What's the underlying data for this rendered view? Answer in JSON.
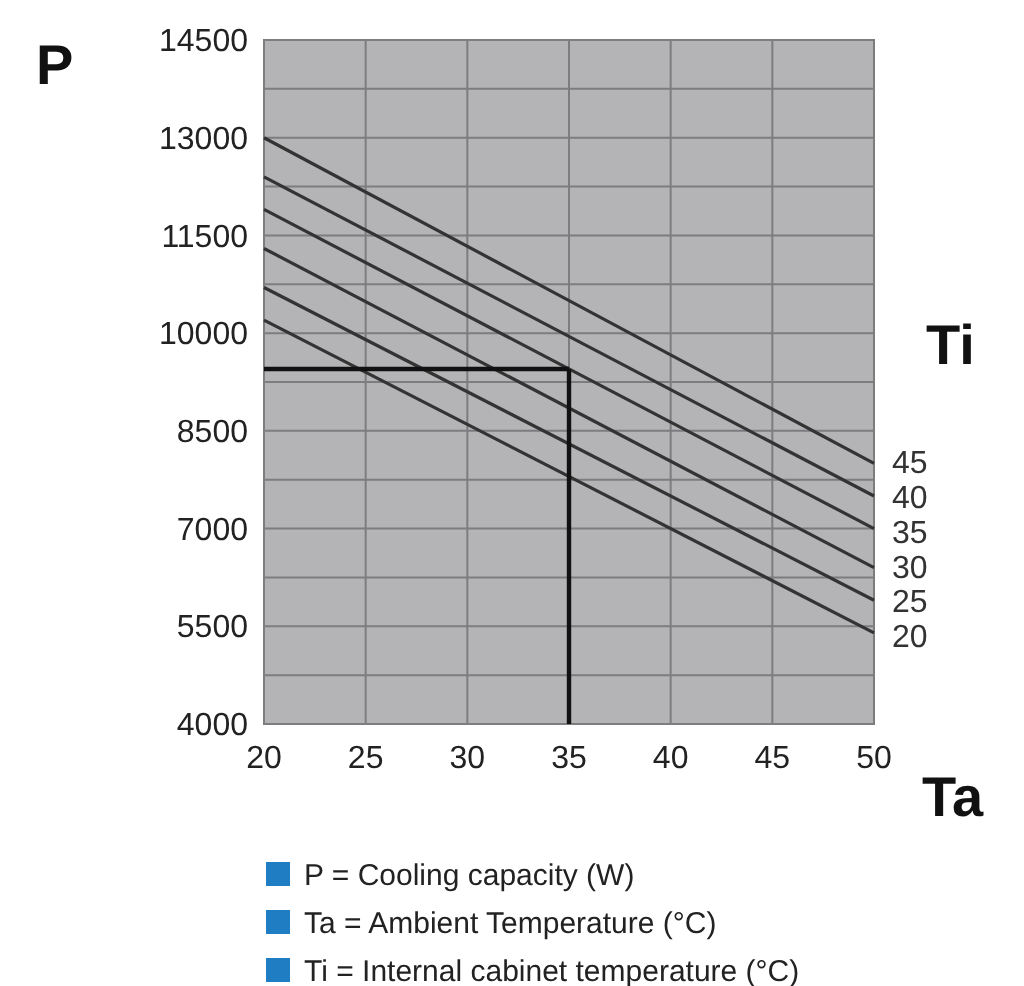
{
  "chart_data": {
    "type": "line",
    "xlabel": "Ta",
    "ylabel": "P",
    "legend_title": "Ti",
    "legend": "right",
    "grid": true,
    "marker": "none",
    "line_style": "solid",
    "x": [
      20,
      50
    ],
    "xlim": [
      20,
      50
    ],
    "xticks": [
      20,
      25,
      30,
      35,
      40,
      45,
      50
    ],
    "ylim": [
      4000,
      14500
    ],
    "yticks": [
      4000,
      {
        "value": 4750,
        "label": null
      },
      5500,
      {
        "value": 6250,
        "label": null
      },
      7000,
      {
        "value": 7750,
        "label": null
      },
      8500,
      {
        "value": 9250,
        "label": null
      },
      10000,
      {
        "value": 10750,
        "label": null
      },
      11500,
      {
        "value": 12250,
        "label": null
      },
      13000,
      {
        "value": 13750,
        "label": null
      },
      14500
    ],
    "series": [
      {
        "name": "45",
        "color": "#333333",
        "values": [
          13000,
          8000
        ]
      },
      {
        "name": "40",
        "color": "#333333",
        "values": [
          12400,
          7500
        ]
      },
      {
        "name": "35",
        "color": "#333333",
        "values": [
          11900,
          7000
        ]
      },
      {
        "name": "30",
        "color": "#333333",
        "values": [
          11300,
          6400
        ]
      },
      {
        "name": "25",
        "color": "#333333",
        "values": [
          10700,
          5900
        ]
      },
      {
        "name": "20",
        "color": "#333333",
        "values": [
          10200,
          5400
        ]
      }
    ],
    "ref_lines": [
      {
        "axis": "y",
        "value": 9450,
        "color": "#111111"
      },
      {
        "axis": "x",
        "value": 35,
        "color": "#111111"
      }
    ],
    "annotations": [
      "P = Cooling capacity (W)",
      "Ta = Ambient Temperature (°C)",
      "Ti = Internal cabinet temperature (°C)"
    ]
  }
}
